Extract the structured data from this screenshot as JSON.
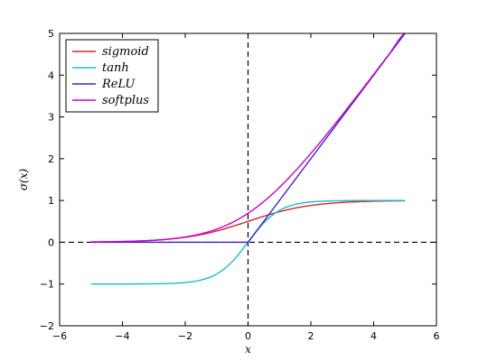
{
  "chart_data": {
    "type": "line",
    "title": "",
    "xlabel": "x",
    "ylabel": "σ(x)",
    "xlim": [
      -6,
      6
    ],
    "ylim": [
      -2,
      5
    ],
    "x_ticks": [
      -6,
      -4,
      -2,
      0,
      2,
      4,
      6
    ],
    "x_tick_labels": [
      "−6",
      "−4",
      "−2",
      "0",
      "2",
      "4",
      "6"
    ],
    "y_ticks": [
      -2,
      -1,
      0,
      1,
      2,
      3,
      4,
      5
    ],
    "y_tick_labels": [
      "−2",
      "−1",
      "0",
      "1",
      "2",
      "3",
      "4",
      "5"
    ],
    "grid": false,
    "legend_position": "top-left",
    "reference_lines": {
      "horizontal_y": 0,
      "vertical_x": 0,
      "style": "dashed",
      "color": "#000000"
    },
    "x": [
      -5,
      -4.5,
      -4,
      -3.5,
      -3,
      -2.5,
      -2,
      -1.5,
      -1,
      -0.5,
      0,
      0.5,
      1,
      1.5,
      2,
      2.5,
      3,
      3.5,
      4,
      4.5,
      5
    ],
    "series": [
      {
        "name": "sigmoid",
        "color": "#d62728",
        "values": [
          0.007,
          0.011,
          0.018,
          0.029,
          0.047,
          0.076,
          0.119,
          0.182,
          0.269,
          0.378,
          0.5,
          0.622,
          0.731,
          0.818,
          0.881,
          0.924,
          0.953,
          0.971,
          0.982,
          0.989,
          0.993
        ]
      },
      {
        "name": "tanh",
        "color": "#17becf",
        "values": [
          -1.0,
          -1.0,
          -0.999,
          -0.998,
          -0.995,
          -0.987,
          -0.964,
          -0.905,
          -0.762,
          -0.462,
          0.0,
          0.462,
          0.762,
          0.905,
          0.964,
          0.987,
          0.995,
          0.998,
          0.999,
          1.0,
          1.0
        ]
      },
      {
        "name": "ReLU",
        "color": "#3a1fd6",
        "values": [
          0,
          0,
          0,
          0,
          0,
          0,
          0,
          0,
          0,
          0,
          0,
          0.5,
          1,
          1.5,
          2,
          2.5,
          3,
          3.5,
          4,
          4.5,
          5
        ]
      },
      {
        "name": "softplus",
        "color": "#cc00cc",
        "values": [
          0.007,
          0.011,
          0.018,
          0.03,
          0.049,
          0.079,
          0.127,
          0.201,
          0.313,
          0.474,
          0.693,
          0.974,
          1.313,
          1.701,
          2.127,
          2.579,
          3.049,
          3.53,
          4.018,
          4.511,
          5.007
        ]
      }
    ]
  }
}
